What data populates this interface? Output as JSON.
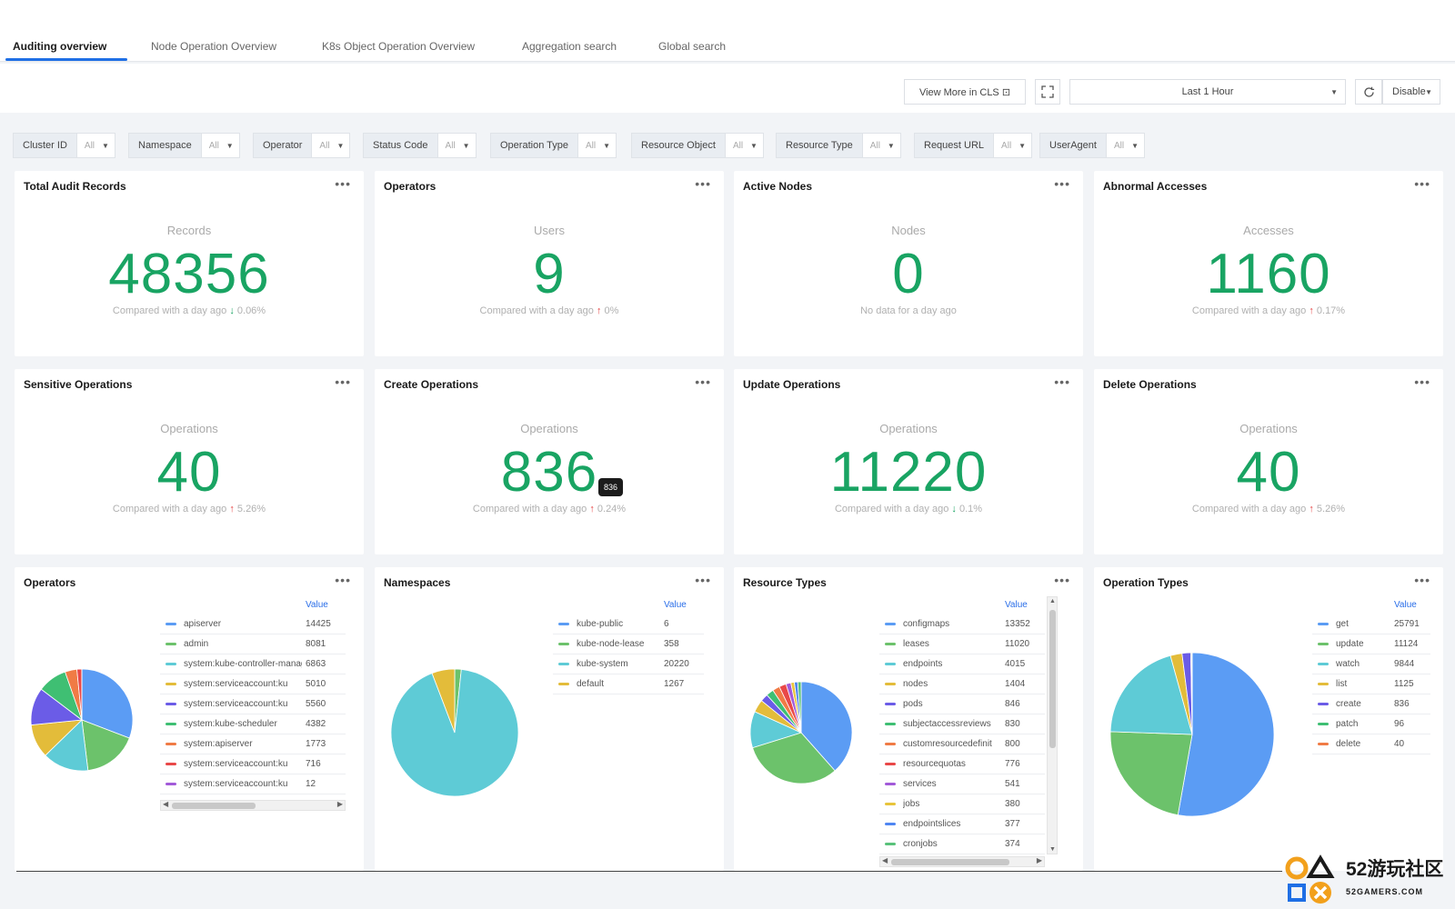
{
  "tabs": [
    {
      "label": "Auditing overview",
      "active": true
    },
    {
      "label": "Node Operation Overview",
      "active": false
    },
    {
      "label": "K8s Object Operation Overview",
      "active": false
    },
    {
      "label": "Aggregation search",
      "active": false
    },
    {
      "label": "Global search",
      "active": false
    }
  ],
  "toolbar": {
    "view_more_label": "View More in CLS ⊡",
    "fullscreen_icon": "fullscreen-icon",
    "time_range": "Last 1 Hour",
    "refresh_icon": "refresh-icon",
    "refresh_mode": "Disable"
  },
  "filters": [
    {
      "label": "Cluster ID",
      "value": "All"
    },
    {
      "label": "Namespace",
      "value": "All"
    },
    {
      "label": "Operator",
      "value": "All"
    },
    {
      "label": "Status Code",
      "value": "All"
    },
    {
      "label": "Operation Type",
      "value": "All"
    },
    {
      "label": "Resource Object",
      "value": "All"
    },
    {
      "label": "Resource Type",
      "value": "All"
    },
    {
      "label": "Request URL",
      "value": "All"
    },
    {
      "label": "UserAgent",
      "value": "All"
    }
  ],
  "stats": [
    {
      "title": "Total Audit Records",
      "sub": "Records",
      "value": "48356",
      "compare": "Compared with a day ago",
      "direction": "down",
      "delta": "0.06%"
    },
    {
      "title": "Operators",
      "sub": "Users",
      "value": "9",
      "compare": "Compared with a day ago",
      "direction": "up",
      "delta": "0%"
    },
    {
      "title": "Active Nodes",
      "sub": "Nodes",
      "value": "0",
      "compare": "No data for a day ago",
      "direction": "",
      "delta": ""
    },
    {
      "title": "Abnormal Accesses",
      "sub": "Accesses",
      "value": "1160",
      "compare": "Compared with a day ago",
      "direction": "up",
      "delta": "0.17%"
    },
    {
      "title": "Sensitive Operations",
      "sub": "Operations",
      "value": "40",
      "compare": "Compared with a day ago",
      "direction": "up",
      "delta": "5.26%"
    },
    {
      "title": "Create Operations",
      "sub": "Operations",
      "value": "836",
      "compare": "Compared with a day ago",
      "direction": "up",
      "delta": "0.24%",
      "tooltip": "836"
    },
    {
      "title": "Update Operations",
      "sub": "Operations",
      "value": "11220",
      "compare": "Compared with a day ago",
      "direction": "down",
      "delta": "0.1%"
    },
    {
      "title": "Delete Operations",
      "sub": "Operations",
      "value": "40",
      "compare": "Compared with a day ago",
      "direction": "up",
      "delta": "5.26%"
    }
  ],
  "chart_data": [
    {
      "type": "pie",
      "title": "Operators",
      "legend_header": "Value",
      "labels": [
        "apiserver",
        "admin",
        "system:kube-controller-manager",
        "system:serviceaccount:ku",
        "system:serviceaccount:ku",
        "system:kube-scheduler",
        "system:apiserver",
        "system:serviceaccount:ku",
        "system:serviceaccount:ku"
      ],
      "values": [
        14425,
        8081,
        6863,
        5010,
        5560,
        4382,
        1773,
        716,
        12
      ],
      "colors": [
        "#5b9cf4",
        "#6cc26b",
        "#5ecbd6",
        "#e3bc3a",
        "#6b5ce7",
        "#3fbf73",
        "#f07b45",
        "#e94848",
        "#a25ad9"
      ]
    },
    {
      "type": "pie",
      "title": "Namespaces",
      "legend_header": "Value",
      "labels": [
        "kube-public",
        "kube-node-lease",
        "kube-system",
        "default"
      ],
      "values": [
        6,
        358,
        20220,
        1267
      ],
      "colors": [
        "#5b9cf4",
        "#6cc26b",
        "#5ecbd6",
        "#e3bc3a"
      ]
    },
    {
      "type": "pie",
      "title": "Resource Types",
      "legend_header": "Value",
      "labels": [
        "configmaps",
        "leases",
        "endpoints",
        "nodes",
        "pods",
        "subjectaccessreviews",
        "customresourcedefinit",
        "resourcequotas",
        "services",
        "jobs",
        "endpointslices",
        "cronjobs"
      ],
      "values": [
        13352,
        11020,
        4015,
        1404,
        846,
        830,
        800,
        776,
        541,
        380,
        377,
        374
      ],
      "colors": [
        "#5b9cf4",
        "#6cc26b",
        "#5ecbd6",
        "#e3bc3a",
        "#6b5ce7",
        "#3fbf73",
        "#f07b45",
        "#e94848",
        "#a25ad9",
        "#e8c43b",
        "#4f86f2",
        "#59c27a"
      ]
    },
    {
      "type": "pie",
      "title": "Operation Types",
      "legend_header": "Value",
      "labels": [
        "get",
        "update",
        "watch",
        "list",
        "create",
        "patch",
        "delete"
      ],
      "values": [
        25791,
        11124,
        9844,
        1125,
        836,
        96,
        40
      ],
      "colors": [
        "#5b9cf4",
        "#6cc26b",
        "#5ecbd6",
        "#e3bc3a",
        "#6b5ce7",
        "#3fbf73",
        "#f07b45"
      ]
    }
  ],
  "watermark": {
    "line1": "52游玩社区",
    "line2": "52GAMERS.COM"
  }
}
